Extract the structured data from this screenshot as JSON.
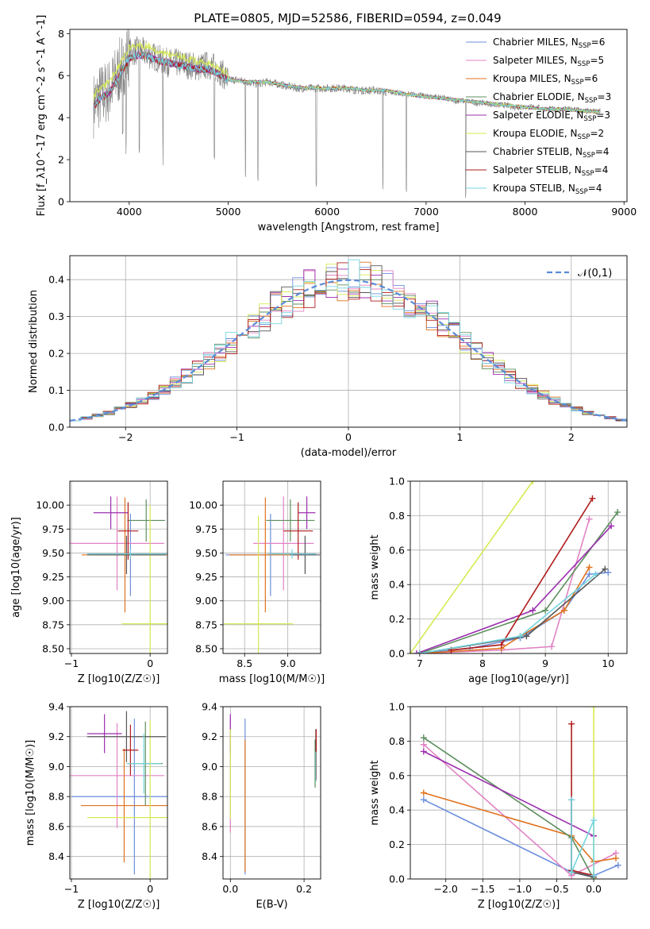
{
  "figure_title": "PLATE=0805, MJD=52586, FIBERID=0594, z=0.049",
  "series_styles": [
    {
      "name": "Chabrier MILES",
      "nssp": "6",
      "color": "#6d8fdc"
    },
    {
      "name": "Salpeter MILES",
      "nssp": "5",
      "color": "#e183c4"
    },
    {
      "name": "Kroupa MILES",
      "nssp": "6",
      "color": "#e0731f"
    },
    {
      "name": "Chabrier ELODIE",
      "nssp": "3",
      "color": "#5e8f5e"
    },
    {
      "name": "Salpeter ELODIE",
      "nssp": "3",
      "color": "#9b2fae"
    },
    {
      "name": "Kroupa ELODIE",
      "nssp": "2",
      "color": "#d6ea52"
    },
    {
      "name": "Chabrier STELIB",
      "nssp": "4",
      "color": "#555555"
    },
    {
      "name": "Salpeter STELIB",
      "nssp": "4",
      "color": "#b01c1c"
    },
    {
      "name": "Kroupa STELIB",
      "nssp": "4",
      "color": "#74d5df"
    }
  ],
  "chart_data": [
    {
      "id": "spectrum",
      "type": "line",
      "xlabel": "wavelength [Angstrom, rest frame]",
      "ylabel": "Flux [f_λ10^-17 erg cm^-2 s^-1 A^-1]",
      "xlim": [
        3400,
        9030
      ],
      "ylim": [
        0,
        8.2
      ],
      "xticks": [
        4000,
        5000,
        6000,
        7000,
        8000,
        9000
      ],
      "yticks": [
        0,
        2,
        4,
        6,
        8
      ],
      "grid": false,
      "legend": "upper right",
      "data_color": "#808080",
      "data_x": [
        3640,
        3700,
        3800,
        3900,
        4000,
        4100,
        4200,
        4300,
        4400,
        4500,
        4600,
        4700,
        4800,
        4900,
        5000,
        5100,
        5200,
        5300,
        5400,
        5500,
        5600,
        5700,
        5800,
        5900,
        6000,
        6100,
        6200,
        6300,
        6400,
        6500,
        6600,
        6700,
        6800,
        6900,
        7000,
        7100,
        7200,
        7300,
        7400,
        7500,
        7600,
        7700,
        7800,
        7900,
        8000,
        8100,
        8200,
        8300,
        8400,
        8500,
        8600,
        8700,
        8760
      ],
      "data_y": [
        4.6,
        5.0,
        5.3,
        6.2,
        7.1,
        7.2,
        7.0,
        6.8,
        6.6,
        6.6,
        6.5,
        6.4,
        6.5,
        6.3,
        5.8,
        5.8,
        5.7,
        5.6,
        5.7,
        5.6,
        5.5,
        5.4,
        5.4,
        5.4,
        5.4,
        5.4,
        5.4,
        5.3,
        5.3,
        5.3,
        5.2,
        5.2,
        5.1,
        5.1,
        5.0,
        5.0,
        4.9,
        4.8,
        4.8,
        4.7,
        4.7,
        4.6,
        4.6,
        4.5,
        4.5,
        4.5,
        4.4,
        4.4,
        4.4,
        4.4,
        4.3,
        4.3,
        4.3
      ],
      "model_x": [
        3640,
        3700,
        3800,
        3900,
        4000,
        4100,
        4200,
        4300,
        4400,
        4500,
        4600,
        4700,
        4800,
        4900,
        5000,
        5200,
        5400,
        5600,
        5800,
        6000,
        6200,
        6400,
        6600,
        6800,
        7000,
        7200,
        7400,
        7600,
        7800,
        8000,
        8200,
        8400,
        8600,
        8760
      ],
      "model_y": [
        4.5,
        4.9,
        5.2,
        6.0,
        6.8,
        7.0,
        6.9,
        6.7,
        6.6,
        6.5,
        6.4,
        6.3,
        6.3,
        6.1,
        5.8,
        5.7,
        5.7,
        5.5,
        5.4,
        5.4,
        5.4,
        5.3,
        5.3,
        5.1,
        5.0,
        4.9,
        4.8,
        4.7,
        4.6,
        4.5,
        4.4,
        4.4,
        4.3,
        4.3
      ],
      "kroupa_elodie_excess": [
        [
          4000,
          0.5
        ],
        [
          4100,
          0.4
        ],
        [
          4200,
          0.5
        ],
        [
          4400,
          0.4
        ],
        [
          4600,
          0.4
        ],
        [
          4800,
          0.3
        ]
      ],
      "absorption_lines": [
        3934,
        3969,
        4102,
        4340,
        4861,
        5175,
        5300,
        5890,
        6563,
        6800,
        7400
      ]
    },
    {
      "id": "residuals",
      "type": "histogram",
      "xlabel": "(data-model)/error",
      "ylabel": "Normed distribution",
      "xlim": [
        -2.5,
        2.5
      ],
      "ylim": [
        0,
        0.465
      ],
      "xticks": [
        -2,
        -1,
        0,
        1,
        2
      ],
      "yticks": [
        0.0,
        0.1,
        0.2,
        0.3,
        0.4
      ],
      "grid": true,
      "legend": "upper right",
      "reference_curve": {
        "label": "𝒩(0,1)",
        "color": "#5b8bd6",
        "mean": 0,
        "sigma": 1
      },
      "bin_width": 0.1
    },
    {
      "id": "age_vs_Z",
      "type": "errorbar",
      "xlabel": "Z [log10(Z/Z☉)]",
      "ylabel": "age  [log10(age/yr)]",
      "xlim": [
        -1.02,
        0.22
      ],
      "ylim": [
        8.45,
        10.25
      ],
      "xticks": [
        -1,
        0
      ],
      "yticks": [
        8.5,
        8.75,
        9.0,
        9.25,
        9.5,
        9.75,
        10.0
      ],
      "grid": true,
      "points": [
        {
          "s": 0,
          "x": -0.25,
          "y": 9.48,
          "xe": 0.45,
          "ye": 0.43
        },
        {
          "s": 1,
          "x": -0.42,
          "y": 9.6,
          "xe": 0.6,
          "ye": 0.49
        },
        {
          "s": 2,
          "x": -0.32,
          "y": 9.48,
          "xe": 0.55,
          "ye": 0.6
        },
        {
          "s": 3,
          "x": -0.05,
          "y": 9.84,
          "xe": 0.24,
          "ye": 0.22
        },
        {
          "s": 4,
          "x": -0.5,
          "y": 9.92,
          "xe": 0.22,
          "ye": 0.17
        },
        {
          "s": 5,
          "x": 0.0,
          "y": 8.76,
          "xe": 0.36,
          "ye": 1.24
        },
        {
          "s": 6,
          "x": -0.3,
          "y": 9.48,
          "xe": 0.5,
          "ye": 0.2
        },
        {
          "s": 7,
          "x": -0.28,
          "y": 9.73,
          "xe": 0.13,
          "ye": 0.3
        },
        {
          "s": 8,
          "x": -0.25,
          "y": 9.49,
          "xe": 0.55,
          "ye": 0.05
        }
      ]
    },
    {
      "id": "age_vs_mass",
      "type": "errorbar",
      "xlabel": "mass [log10(M/M☉)]",
      "ylabel": "",
      "xlim": [
        8.25,
        9.38
      ],
      "ylim": [
        8.45,
        10.25
      ],
      "xticks": [
        8.5,
        9.0
      ],
      "yticks": [
        8.5,
        8.75,
        9.0,
        9.25,
        9.5,
        9.75,
        10.0
      ],
      "grid": true,
      "points": [
        {
          "s": 0,
          "x": 8.8,
          "y": 9.48,
          "xe": 0.52,
          "ye": 0.43
        },
        {
          "s": 1,
          "x": 8.95,
          "y": 9.6,
          "xe": 0.35,
          "ye": 0.49
        },
        {
          "s": 2,
          "x": 8.74,
          "y": 9.48,
          "xe": 0.42,
          "ye": 0.6
        },
        {
          "s": 3,
          "x": 9.03,
          "y": 9.84,
          "xe": 0.28,
          "ye": 0.22
        },
        {
          "s": 4,
          "x": 9.22,
          "y": 9.92,
          "xe": 0.1,
          "ye": 0.17
        },
        {
          "s": 5,
          "x": 8.66,
          "y": 8.76,
          "xe": 0.4,
          "ye": 1.13
        },
        {
          "s": 6,
          "x": 9.2,
          "y": 9.48,
          "xe": 0.17,
          "ye": 0.2
        },
        {
          "s": 7,
          "x": 9.12,
          "y": 9.73,
          "xe": 0.17,
          "ye": 0.3
        },
        {
          "s": 8,
          "x": 9.05,
          "y": 9.49,
          "xe": 0.28,
          "ye": 0.05
        }
      ]
    },
    {
      "id": "weight_vs_age",
      "type": "line",
      "xlabel": "age  [log10(age/yr)]",
      "ylabel": "mass weight",
      "xlim": [
        6.85,
        10.3
      ],
      "ylim": [
        0,
        1.0
      ],
      "xticks": [
        7,
        8,
        9,
        10
      ],
      "yticks": [
        0.0,
        0.2,
        0.4,
        0.6,
        0.8,
        1.0
      ],
      "grid": true,
      "series": [
        {
          "s": 0,
          "x": [
            7.0,
            7.8,
            8.6,
            9.3,
            9.7,
            10.0
          ],
          "y": [
            0.0,
            0.03,
            0.09,
            0.25,
            0.46,
            0.47
          ]
        },
        {
          "s": 1,
          "x": [
            7.0,
            8.3,
            9.1,
            9.7
          ],
          "y": [
            0.0,
            0.02,
            0.04,
            0.78
          ]
        },
        {
          "s": 2,
          "x": [
            7.0,
            8.3,
            8.6,
            9.3,
            9.7
          ],
          "y": [
            0.0,
            0.03,
            0.1,
            0.25,
            0.5
          ]
        },
        {
          "s": 3,
          "x": [
            7.0,
            9.0,
            10.15
          ],
          "y": [
            0.0,
            0.25,
            0.82
          ]
        },
        {
          "s": 4,
          "x": [
            6.95,
            8.8,
            10.05
          ],
          "y": [
            0.0,
            0.25,
            0.74
          ]
        },
        {
          "s": 5,
          "x": [
            6.85,
            8.8
          ],
          "y": [
            0.0,
            1.0
          ]
        },
        {
          "s": 6,
          "x": [
            7.0,
            8.7,
            9.95
          ],
          "y": [
            0.0,
            0.1,
            0.49
          ]
        },
        {
          "s": 7,
          "x": [
            7.5,
            8.3,
            9.75
          ],
          "y": [
            0.02,
            0.05,
            0.9
          ]
        },
        {
          "s": 8,
          "x": [
            7.0,
            8.6,
            9.8
          ],
          "y": [
            0.0,
            0.1,
            0.46
          ]
        }
      ]
    },
    {
      "id": "mass_vs_Z",
      "type": "errorbar",
      "xlabel": "Z [log10(Z/Z☉)]",
      "ylabel": "mass [log10(M/M☉)]",
      "xlim": [
        -1.02,
        0.22
      ],
      "ylim": [
        8.25,
        9.4
      ],
      "xticks": [
        -1,
        0
      ],
      "yticks": [
        8.4,
        8.6,
        8.8,
        9.0,
        9.2,
        9.4
      ],
      "grid": true,
      "points": [
        {
          "s": 0,
          "x": -0.2,
          "y": 8.8,
          "xe": 0.8,
          "ye": 0.52
        },
        {
          "s": 1,
          "x": -0.42,
          "y": 8.94,
          "xe": 0.6,
          "ye": 0.35
        },
        {
          "s": 2,
          "x": -0.33,
          "y": 8.74,
          "xe": 0.55,
          "ye": 0.38
        },
        {
          "s": 3,
          "x": -0.06,
          "y": 9.02,
          "xe": 0.22,
          "ye": 0.28
        },
        {
          "s": 4,
          "x": -0.58,
          "y": 9.22,
          "xe": 0.22,
          "ye": 0.13
        },
        {
          "s": 5,
          "x": 0.0,
          "y": 8.66,
          "xe": 0.8,
          "ye": 0.65
        },
        {
          "s": 6,
          "x": -0.3,
          "y": 9.2,
          "xe": 0.5,
          "ye": 0.17
        },
        {
          "s": 7,
          "x": -0.25,
          "y": 9.11,
          "xe": 0.1,
          "ye": 0.17
        },
        {
          "s": 8,
          "x": -0.08,
          "y": 9.02,
          "xe": 0.22,
          "ye": 0.2
        }
      ]
    },
    {
      "id": "mass_vs_EBV",
      "type": "errorbar",
      "xlabel": "E(B-V)",
      "ylabel": "",
      "xlim": [
        -0.02,
        0.245
      ],
      "ylim": [
        8.25,
        9.4
      ],
      "xticks": [
        0.0,
        0.2
      ],
      "yticks": [
        8.4,
        8.6,
        8.8,
        9.0,
        9.2,
        9.4
      ],
      "grid": true,
      "points": [
        {
          "s": 0,
          "x": 0.04,
          "y": 8.8,
          "xe": 0.0,
          "ye": 0.52
        },
        {
          "s": 1,
          "x": 0.0,
          "y": 8.94,
          "xe": 0.0,
          "ye": 0.38
        },
        {
          "s": 2,
          "x": 0.04,
          "y": 8.74,
          "xe": 0.0,
          "ye": 0.44
        },
        {
          "s": 3,
          "x": 0.23,
          "y": 9.02,
          "xe": 0.0,
          "ye": 0.16
        },
        {
          "s": 4,
          "x": 0.0,
          "y": 9.22,
          "xe": 0.0,
          "ye": 0.13
        },
        {
          "s": 5,
          "x": 0.0,
          "y": 8.95,
          "xe": 0.0,
          "ye": 0.3
        },
        {
          "s": 6,
          "x": 0.232,
          "y": 9.1,
          "xe": 0.0,
          "ye": 0.15
        },
        {
          "s": 7,
          "x": 0.233,
          "y": 9.08,
          "xe": 0.0,
          "ye": 0.17
        },
        {
          "s": 8,
          "x": 0.232,
          "y": 9.0,
          "xe": 0.0,
          "ye": 0.1
        }
      ]
    },
    {
      "id": "weight_vs_Z",
      "type": "line",
      "xlabel": "Z [log10(Z/Z☉)]",
      "ylabel": "mass weight",
      "xlim": [
        -2.48,
        0.45
      ],
      "ylim": [
        0,
        1.0
      ],
      "xticks": [
        -2.0,
        -1.5,
        -1.0,
        -0.5,
        0.0
      ],
      "yticks": [
        0.0,
        0.2,
        0.4,
        0.6,
        0.8,
        1.0
      ],
      "grid": true,
      "series": [
        {
          "s": 0,
          "x": [
            -2.3,
            -0.3,
            0.0,
            0.33
          ],
          "y": [
            0.46,
            0.04,
            0.02,
            0.08
          ]
        },
        {
          "s": 1,
          "x": [
            -2.3,
            -0.3,
            0.3
          ],
          "y": [
            0.78,
            0.02,
            0.15
          ]
        },
        {
          "s": 2,
          "x": [
            -2.3,
            -0.3,
            0.0,
            0.3
          ],
          "y": [
            0.5,
            0.25,
            0.1,
            0.12
          ]
        },
        {
          "s": 3,
          "x": [
            -2.3,
            -0.3,
            0.0
          ],
          "y": [
            0.82,
            0.24,
            0.0
          ]
        },
        {
          "s": 4,
          "x": [
            -2.3,
            0.0
          ],
          "y": [
            0.74,
            0.25
          ]
        },
        {
          "s": 5,
          "x": [
            0.0,
            0.0
          ],
          "y": [
            1.0,
            0.0
          ]
        },
        {
          "s": 6,
          "x": [
            -0.3,
            -0.3,
            0.0
          ],
          "y": [
            0.46,
            0.04,
            0.01
          ]
        },
        {
          "s": 7,
          "x": [
            -0.3,
            -0.3,
            0.0
          ],
          "y": [
            0.9,
            0.05,
            0.02
          ]
        },
        {
          "s": 8,
          "x": [
            -0.3,
            -0.3,
            0.0,
            0.0
          ],
          "y": [
            0.46,
            0.04,
            0.34,
            0.02
          ]
        }
      ]
    }
  ]
}
